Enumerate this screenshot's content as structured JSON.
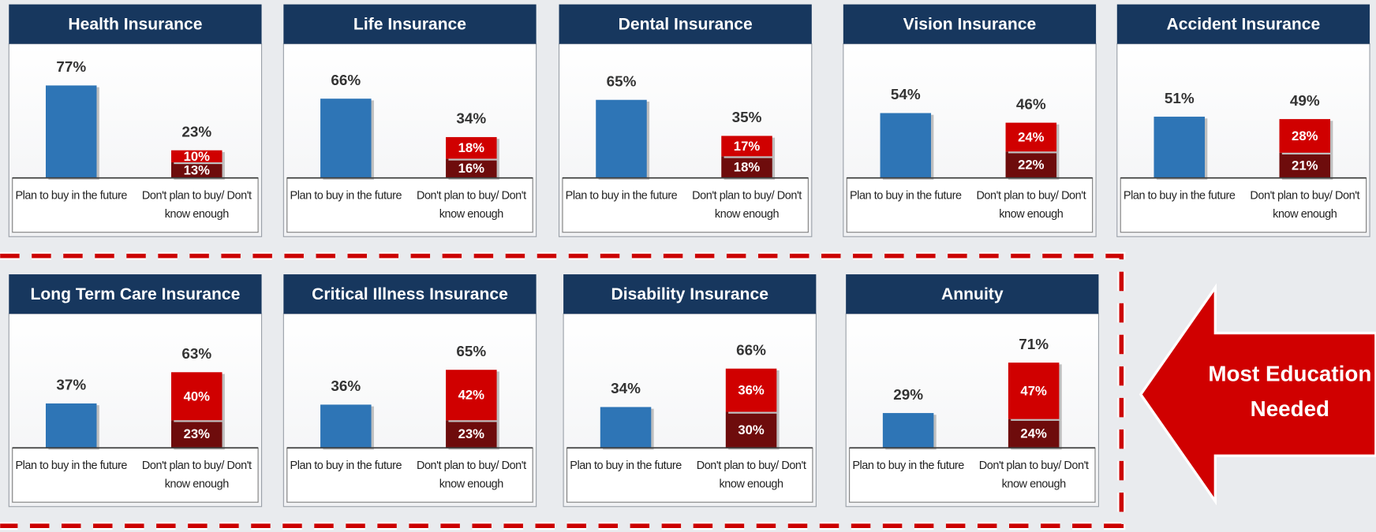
{
  "chart_data": [
    {
      "type": "bar",
      "title": "Health Insurance",
      "categories": [
        "Plan to buy in the future",
        "Don't plan to buy/ Don't know enough"
      ],
      "ylim": [
        0,
        100
      ],
      "series": [
        {
          "color": "#2e75b6",
          "values": [
            77,
            null
          ]
        },
        {
          "color": "#6e0c0c",
          "values": [
            null,
            13
          ],
          "value_labels": [
            null,
            "13%"
          ]
        },
        {
          "color": "#d00000",
          "values": [
            null,
            10
          ],
          "value_labels": [
            null,
            "10%"
          ]
        }
      ],
      "totals": [
        {
          "value": 77,
          "label": "77%"
        },
        {
          "value": 23,
          "label": "23%"
        }
      ]
    },
    {
      "type": "bar",
      "title": "Life Insurance",
      "categories": [
        "Plan to buy in the future",
        "Don't plan to buy/ Don't know enough"
      ],
      "ylim": [
        0,
        100
      ],
      "series": [
        {
          "color": "#2e75b6",
          "values": [
            66,
            null
          ]
        },
        {
          "color": "#6e0c0c",
          "values": [
            null,
            16
          ],
          "value_labels": [
            null,
            "16%"
          ]
        },
        {
          "color": "#d00000",
          "values": [
            null,
            18
          ],
          "value_labels": [
            null,
            "18%"
          ]
        }
      ],
      "totals": [
        {
          "value": 66,
          "label": "66%"
        },
        {
          "value": 34,
          "label": "34%"
        }
      ]
    },
    {
      "type": "bar",
      "title": "Dental Insurance",
      "categories": [
        "Plan to buy in the future",
        "Don't plan to buy/ Don't know enough"
      ],
      "ylim": [
        0,
        100
      ],
      "series": [
        {
          "color": "#2e75b6",
          "values": [
            65,
            null
          ]
        },
        {
          "color": "#6e0c0c",
          "values": [
            null,
            18
          ],
          "value_labels": [
            null,
            "18%"
          ]
        },
        {
          "color": "#d00000",
          "values": [
            null,
            17
          ],
          "value_labels": [
            null,
            "17%"
          ]
        }
      ],
      "totals": [
        {
          "value": 65,
          "label": "65%"
        },
        {
          "value": 35,
          "label": "35%"
        }
      ]
    },
    {
      "type": "bar",
      "title": "Vision Insurance",
      "categories": [
        "Plan to buy in the future",
        "Don't plan to buy/ Don't know enough"
      ],
      "ylim": [
        0,
        100
      ],
      "series": [
        {
          "color": "#2e75b6",
          "values": [
            54,
            null
          ]
        },
        {
          "color": "#6e0c0c",
          "values": [
            null,
            22
          ],
          "value_labels": [
            null,
            "22%"
          ]
        },
        {
          "color": "#d00000",
          "values": [
            null,
            24
          ],
          "value_labels": [
            null,
            "24%"
          ]
        }
      ],
      "totals": [
        {
          "value": 54,
          "label": "54%"
        },
        {
          "value": 46,
          "label": "46%"
        }
      ]
    },
    {
      "type": "bar",
      "title": "Accident Insurance",
      "categories": [
        "Plan to buy in the future",
        "Don't plan to buy/ Don't know enough"
      ],
      "ylim": [
        0,
        100
      ],
      "series": [
        {
          "color": "#2e75b6",
          "values": [
            51,
            null
          ]
        },
        {
          "color": "#6e0c0c",
          "values": [
            null,
            21
          ],
          "value_labels": [
            null,
            "21%"
          ]
        },
        {
          "color": "#d00000",
          "values": [
            null,
            28
          ],
          "value_labels": [
            null,
            "28%"
          ]
        }
      ],
      "totals": [
        {
          "value": 51,
          "label": "51%"
        },
        {
          "value": 49,
          "label": "49%"
        }
      ]
    },
    {
      "type": "bar",
      "title": "Long Term Care Insurance",
      "categories": [
        "Plan to buy in the future",
        "Don't plan to buy/ Don't know enough"
      ],
      "ylim": [
        0,
        100
      ],
      "series": [
        {
          "color": "#2e75b6",
          "values": [
            37,
            null
          ]
        },
        {
          "color": "#6e0c0c",
          "values": [
            null,
            23
          ],
          "value_labels": [
            null,
            "23%"
          ]
        },
        {
          "color": "#d00000",
          "values": [
            null,
            40
          ],
          "value_labels": [
            null,
            "40%"
          ]
        }
      ],
      "totals": [
        {
          "value": 37,
          "label": "37%"
        },
        {
          "value": 63,
          "label": "63%"
        }
      ]
    },
    {
      "type": "bar",
      "title": "Critical Illness Insurance",
      "categories": [
        "Plan to buy in the future",
        "Don't plan to buy/ Don't know enough"
      ],
      "ylim": [
        0,
        100
      ],
      "series": [
        {
          "color": "#2e75b6",
          "values": [
            36,
            null
          ]
        },
        {
          "color": "#6e0c0c",
          "values": [
            null,
            23
          ],
          "value_labels": [
            null,
            "23%"
          ]
        },
        {
          "color": "#d00000",
          "values": [
            null,
            42
          ],
          "value_labels": [
            null,
            "42%"
          ]
        }
      ],
      "totals": [
        {
          "value": 36,
          "label": "36%"
        },
        {
          "value": 65,
          "label": "65%"
        }
      ]
    },
    {
      "type": "bar",
      "title": "Disability Insurance",
      "categories": [
        "Plan to buy in the future",
        "Don't plan to buy/ Don't know enough"
      ],
      "ylim": [
        0,
        100
      ],
      "series": [
        {
          "color": "#2e75b6",
          "values": [
            34,
            null
          ]
        },
        {
          "color": "#6e0c0c",
          "values": [
            null,
            30
          ],
          "value_labels": [
            null,
            "30%"
          ]
        },
        {
          "color": "#d00000",
          "values": [
            null,
            36
          ],
          "value_labels": [
            null,
            "36%"
          ]
        }
      ],
      "totals": [
        {
          "value": 34,
          "label": "34%"
        },
        {
          "value": 66,
          "label": "66%"
        }
      ]
    },
    {
      "type": "bar",
      "title": "Annuity",
      "categories": [
        "Plan to buy in the future",
        "Don't plan to buy/ Don't know enough"
      ],
      "ylim": [
        0,
        100
      ],
      "series": [
        {
          "color": "#2e75b6",
          "values": [
            29,
            null
          ]
        },
        {
          "color": "#6e0c0c",
          "values": [
            null,
            24
          ],
          "value_labels": [
            null,
            "24%"
          ]
        },
        {
          "color": "#d00000",
          "values": [
            null,
            47
          ],
          "value_labels": [
            null,
            "47%"
          ]
        }
      ],
      "totals": [
        {
          "value": 29,
          "label": "29%"
        },
        {
          "value": 71,
          "label": "71%"
        }
      ]
    }
  ],
  "callout": [
    "Most Education",
    "Needed"
  ]
}
